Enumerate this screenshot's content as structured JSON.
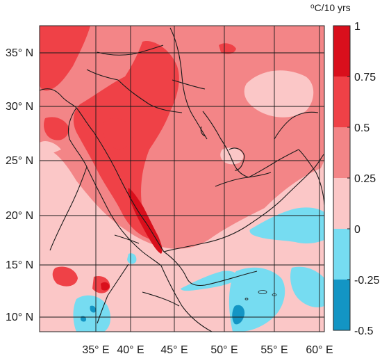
{
  "map": {
    "colorbar": {
      "unit_superscript": "o",
      "unit_text": "C/10 yrs",
      "ticks": [
        "1",
        "0.75",
        "0.5",
        "0.25",
        "0",
        "-0.25",
        "-0.5"
      ],
      "bins": [
        {
          "from": 0.75,
          "to": 1,
          "color": "#d90f1c"
        },
        {
          "from": 0.5,
          "to": 0.75,
          "color": "#ef4147"
        },
        {
          "from": 0.25,
          "to": 0.5,
          "color": "#f38587"
        },
        {
          "from": 0,
          "to": 0.25,
          "color": "#fbc7c7"
        },
        {
          "from": -0.25,
          "to": 0,
          "color": "#76dcf1"
        },
        {
          "from": -0.5,
          "to": -0.25,
          "color": "#1395c4"
        }
      ]
    },
    "lat_labels": [
      "35° N",
      "30° N",
      "25° N",
      "20° N",
      "15° N",
      "10° N"
    ],
    "lon_labels": [
      "35° E",
      "40° E",
      "45° E",
      "50° E",
      "55° E",
      "60° E"
    ],
    "extent": {
      "lon": [
        30,
        61
      ],
      "lat": [
        8.5,
        37.5
      ]
    },
    "colors": {
      "frame": "#222222",
      "grid": "#1a1a1a",
      "border": "#1a1a1a"
    }
  }
}
